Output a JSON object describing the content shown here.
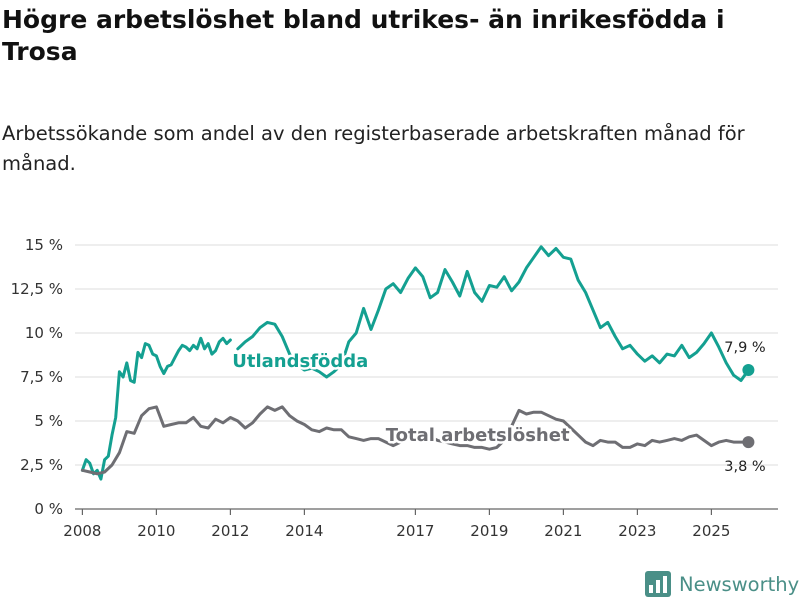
{
  "title": "Högre arbetslöshet bland utrikes- än inrikesfödda i Trosa",
  "subtitle": "Arbetssökande som andel av den registerbaserade arbetskraften månad för månad.",
  "brand": {
    "name": "Newsworthy",
    "icon": "bar-chart-logo-icon"
  },
  "colors": {
    "utlandsfodda": "#14a091",
    "total": "#6e6e73",
    "grid": "#dcdcdc"
  },
  "chart_data": {
    "type": "line",
    "title": "Högre arbetslöshet bland utrikes- än inrikesfödda i Trosa",
    "xlabel": "",
    "ylabel": "",
    "xlim": [
      2007.8,
      2026.8
    ],
    "ylim": [
      0,
      15
    ],
    "grid": true,
    "y_ticks": [
      {
        "value": 0,
        "label": "0 %"
      },
      {
        "value": 2.5,
        "label": "2,5 %"
      },
      {
        "value": 5,
        "label": "5 %"
      },
      {
        "value": 7.5,
        "label": "7,5 %"
      },
      {
        "value": 10,
        "label": "10 %"
      },
      {
        "value": 12.5,
        "label": "12,5 %"
      },
      {
        "value": 15,
        "label": "15 %"
      }
    ],
    "x_ticks": [
      {
        "value": 2008,
        "label": "2008"
      },
      {
        "value": 2010,
        "label": "2010"
      },
      {
        "value": 2012,
        "label": "2012"
      },
      {
        "value": 2014,
        "label": "2014"
      },
      {
        "value": 2017,
        "label": "2017"
      },
      {
        "value": 2019,
        "label": "2019"
      },
      {
        "value": 2021,
        "label": "2021"
      },
      {
        "value": 2023,
        "label": "2023"
      },
      {
        "value": 2025,
        "label": "2025"
      }
    ],
    "series": [
      {
        "key": "utlandsfodda",
        "name": "Utlandsfödda",
        "end_label": "7,9 %",
        "end_value": 7.9,
        "x": [
          2008.0,
          2008.1,
          2008.2,
          2008.3,
          2008.4,
          2008.5,
          2008.6,
          2008.7,
          2008.8,
          2008.9,
          2009.0,
          2009.1,
          2009.2,
          2009.3,
          2009.4,
          2009.5,
          2009.6,
          2009.7,
          2009.8,
          2009.9,
          2010.0,
          2010.1,
          2010.2,
          2010.3,
          2010.4,
          2010.5,
          2010.6,
          2010.7,
          2010.8,
          2010.9,
          2011.0,
          2011.1,
          2011.2,
          2011.3,
          2011.4,
          2011.5,
          2011.6,
          2011.7,
          2011.8,
          2011.9,
          2012.0,
          null,
          2012.2,
          2012.4,
          2012.6,
          2012.8,
          2013.0,
          2013.2,
          2013.4,
          2013.6,
          2013.8,
          2014.0,
          2014.2,
          2014.4,
          2014.6,
          2014.8,
          2015.0,
          2015.2,
          2015.4,
          2015.6,
          2015.8,
          2016.0,
          2016.2,
          2016.4,
          2016.6,
          2016.8,
          2017.0,
          2017.2,
          2017.4,
          2017.6,
          2017.8,
          2018.0,
          2018.2,
          2018.4,
          2018.6,
          2018.8,
          2019.0,
          2019.2,
          2019.4,
          2019.6,
          2019.8,
          2020.0,
          2020.2,
          2020.4,
          2020.6,
          2020.8,
          2021.0,
          2021.2,
          2021.4,
          2021.6,
          2021.8,
          2022.0,
          2022.2,
          2022.4,
          2022.6,
          2022.8,
          2023.0,
          2023.2,
          2023.4,
          2023.6,
          2023.8,
          2024.0,
          2024.2,
          2024.4,
          2024.6,
          2024.8,
          2025.0,
          2025.2,
          2025.4,
          2025.6,
          2025.8,
          2026.0
        ],
        "y": [
          2.2,
          2.8,
          2.6,
          2.0,
          2.2,
          1.7,
          2.8,
          3.0,
          4.2,
          5.2,
          7.8,
          7.5,
          8.3,
          7.3,
          7.2,
          8.9,
          8.6,
          9.4,
          9.3,
          8.8,
          8.7,
          8.1,
          7.7,
          8.1,
          8.2,
          8.6,
          9.0,
          9.3,
          9.2,
          9.0,
          9.3,
          9.1,
          9.7,
          9.1,
          9.4,
          8.8,
          9.0,
          9.5,
          9.7,
          9.4,
          9.6,
          null,
          9.1,
          9.5,
          9.8,
          10.3,
          10.6,
          10.5,
          9.8,
          8.8,
          8.2,
          7.9,
          8.0,
          7.8,
          7.5,
          7.8,
          8.2,
          9.5,
          10.0,
          11.4,
          10.2,
          11.3,
          12.5,
          12.8,
          12.3,
          13.1,
          13.7,
          13.2,
          12.0,
          12.3,
          13.6,
          12.9,
          12.1,
          13.5,
          12.3,
          11.8,
          12.7,
          12.6,
          13.2,
          12.4,
          12.9,
          13.7,
          14.3,
          14.9,
          14.4,
          14.8,
          14.3,
          14.2,
          13.0,
          12.3,
          11.3,
          10.3,
          10.6,
          9.8,
          9.1,
          9.3,
          8.8,
          8.4,
          8.7,
          8.3,
          8.8,
          8.7,
          9.3,
          8.6,
          8.9,
          9.4,
          10.0,
          9.2,
          8.3,
          7.6,
          7.3,
          7.9
        ]
      },
      {
        "key": "total",
        "name": "Total arbetslöshet",
        "end_label": "3,8 %",
        "end_value": 3.8,
        "x": [
          2008.0,
          2008.2,
          2008.4,
          2008.6,
          2008.8,
          2009.0,
          2009.2,
          2009.4,
          2009.6,
          2009.8,
          2010.0,
          2010.2,
          2010.4,
          2010.6,
          2010.8,
          2011.0,
          2011.2,
          2011.4,
          2011.6,
          2011.8,
          2012.0,
          2012.2,
          2012.4,
          2012.6,
          2012.8,
          2013.0,
          2013.2,
          2013.4,
          2013.6,
          2013.8,
          2014.0,
          2014.2,
          2014.4,
          2014.6,
          2014.8,
          2015.0,
          2015.2,
          2015.4,
          2015.6,
          2015.8,
          2016.0,
          2016.2,
          2016.4,
          2016.6,
          2016.8,
          2017.0,
          2017.2,
          2017.4,
          2017.6,
          2017.8,
          2018.0,
          2018.2,
          2018.4,
          2018.6,
          2018.8,
          2019.0,
          2019.2,
          2019.4,
          2019.6,
          2019.8,
          2020.0,
          2020.2,
          2020.4,
          2020.6,
          2020.8,
          2021.0,
          2021.2,
          2021.4,
          2021.6,
          2021.8,
          2022.0,
          2022.2,
          2022.4,
          2022.6,
          2022.8,
          2023.0,
          2023.2,
          2023.4,
          2023.6,
          2023.8,
          2024.0,
          2024.2,
          2024.4,
          2024.6,
          2024.8,
          2025.0,
          2025.2,
          2025.4,
          2025.6,
          2025.8,
          2026.0
        ],
        "y": [
          2.2,
          2.1,
          2.0,
          2.1,
          2.5,
          3.2,
          4.4,
          4.3,
          5.3,
          5.7,
          5.8,
          4.7,
          4.8,
          4.9,
          4.9,
          5.2,
          4.7,
          4.6,
          5.1,
          4.9,
          5.2,
          5.0,
          4.6,
          4.9,
          5.4,
          5.8,
          5.6,
          5.8,
          5.3,
          5.0,
          4.8,
          4.5,
          4.4,
          4.6,
          4.5,
          4.5,
          4.1,
          4.0,
          3.9,
          4.0,
          4.0,
          3.8,
          3.6,
          3.8,
          4.1,
          4.3,
          4.2,
          4.1,
          3.9,
          3.8,
          3.7,
          3.6,
          3.6,
          3.5,
          3.5,
          3.4,
          3.5,
          3.9,
          4.7,
          5.6,
          5.4,
          5.5,
          5.5,
          5.3,
          5.1,
          5.0,
          4.6,
          4.2,
          3.8,
          3.6,
          3.9,
          3.8,
          3.8,
          3.5,
          3.5,
          3.7,
          3.6,
          3.9,
          3.8,
          3.9,
          4.0,
          3.9,
          4.1,
          4.2,
          3.9,
          3.6,
          3.8,
          3.9,
          3.8,
          3.8,
          3.8
        ]
      }
    ]
  }
}
